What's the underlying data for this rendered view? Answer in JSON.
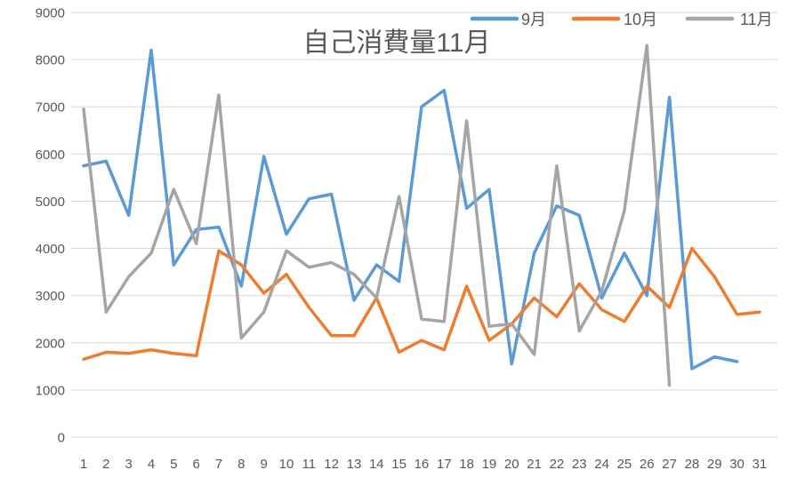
{
  "chart_data": {
    "type": "line",
    "title": "自己消費量11月",
    "x_categories": [
      1,
      2,
      3,
      4,
      5,
      6,
      7,
      8,
      9,
      10,
      11,
      12,
      13,
      14,
      15,
      16,
      17,
      18,
      19,
      20,
      21,
      22,
      23,
      24,
      25,
      26,
      27,
      28,
      29,
      30,
      31
    ],
    "series": [
      {
        "name": "9月",
        "color": "#5B9BD5",
        "values": [
          5750,
          5850,
          4700,
          8200,
          3650,
          4400,
          4450,
          3200,
          5950,
          4300,
          5050,
          5150,
          2900,
          3650,
          3300,
          7000,
          7350,
          4850,
          5250,
          1550,
          3900,
          4900,
          4700,
          2950,
          3900,
          3000,
          7200,
          1450,
          1700,
          1600,
          null
        ]
      },
      {
        "name": "10月",
        "color": "#ED7D31",
        "values": [
          1650,
          1800,
          1775,
          1850,
          1775,
          1725,
          3950,
          3650,
          3050,
          3450,
          2750,
          2150,
          2150,
          2950,
          1800,
          2050,
          1850,
          3200,
          2050,
          2400,
          2950,
          2550,
          3250,
          2700,
          2450,
          3200,
          2750,
          4000,
          3400,
          2600,
          2650
        ]
      },
      {
        "name": "11月",
        "color": "#A5A5A5",
        "values": [
          6950,
          2650,
          3400,
          3900,
          5250,
          4100,
          7250,
          2100,
          2650,
          3950,
          3600,
          3700,
          3450,
          2950,
          5100,
          2500,
          2450,
          6700,
          2350,
          2400,
          1750,
          5750,
          2250,
          3100,
          4800,
          8300,
          1100,
          null,
          null,
          null,
          null
        ]
      }
    ],
    "ylim": [
      0,
      9000
    ],
    "y_tick_step": 1000,
    "y_tick_labels": [
      "0",
      "1000",
      "2000",
      "3000",
      "4000",
      "5000",
      "6000",
      "7000",
      "8000",
      "9000"
    ],
    "grid": "horizontal",
    "legend_position": "top-right",
    "axis_text_color": "#595959",
    "title_color": "#595959",
    "gridline_color": "#D9D9D9",
    "background": "#FFFFFF"
  }
}
